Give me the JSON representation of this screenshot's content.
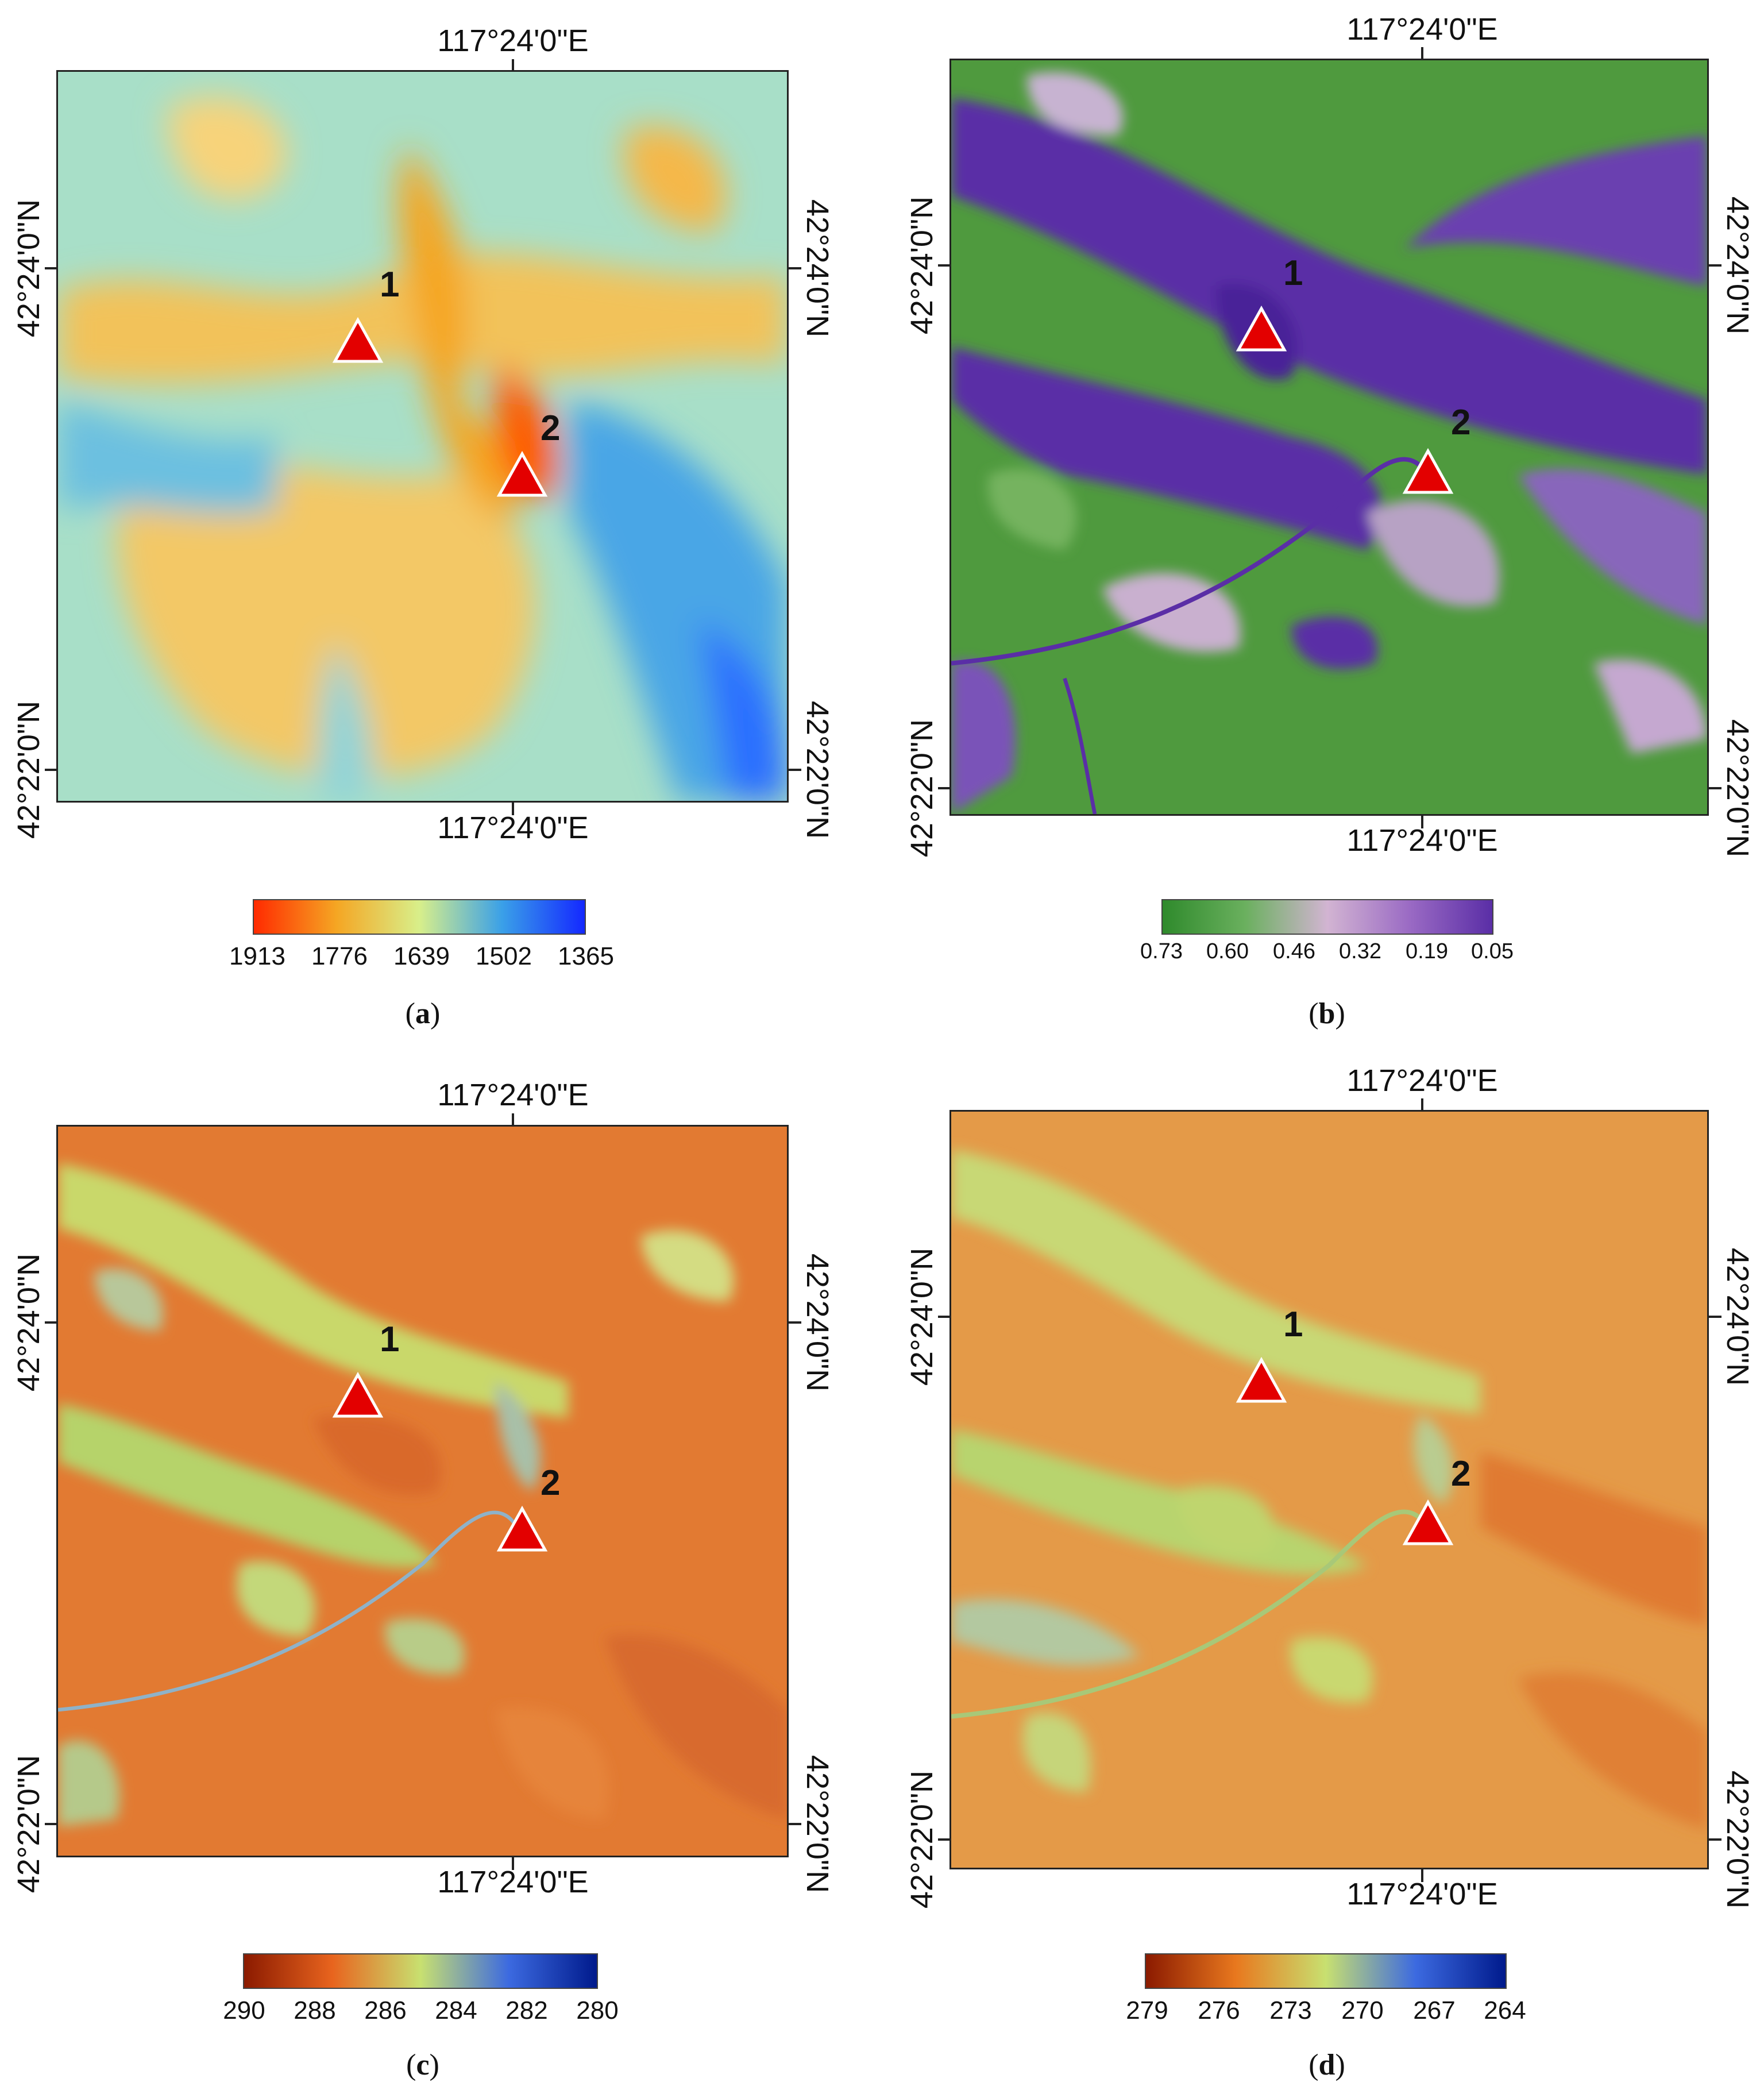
{
  "panels": {
    "a": {
      "caption_letter": "a",
      "coord_top": "117°24'0\"E",
      "coord_bottom": "117°24'0\"E",
      "coord_left_upper": "42°24'0\"N",
      "coord_left_lower": "42°22'0\"N",
      "coord_right_upper": "42°24'0\"N",
      "coord_right_lower": "42°22'0\"N",
      "site1": "1",
      "site2": "2",
      "legend": {
        "ticks": [
          "1913",
          "1776",
          "1639",
          "1502",
          "1365"
        ],
        "colors": [
          "#ff2a00",
          "#f5a623",
          "#d8ef8a",
          "#3aa0e8",
          "#1428ff"
        ]
      }
    },
    "b": {
      "caption_letter": "b",
      "coord_top": "117°24'0\"E",
      "coord_bottom": "117°24'0\"E",
      "coord_left_upper": "42°24'0\"N",
      "coord_left_lower": "42°22'0\"N",
      "coord_right_upper": "42°24'0\"N",
      "coord_right_lower": "42°22'0\"N",
      "site1": "1",
      "site2": "2",
      "legend": {
        "ticks": [
          "0.73",
          "0.60",
          "0.46",
          "0.32",
          "0.19",
          "0.05"
        ],
        "colors": [
          "#2f8a2c",
          "#6ab05e",
          "#d2b4d2",
          "#9a6ac4",
          "#5a2ea6"
        ]
      }
    },
    "c": {
      "caption_letter": "c",
      "coord_top": "117°24'0\"E",
      "coord_bottom": "117°24'0\"E",
      "coord_left_upper": "42°24'0\"N",
      "coord_left_lower": "42°22'0\"N",
      "coord_right_upper": "42°24'0\"N",
      "coord_right_lower": "42°22'0\"N",
      "site1": "1",
      "site2": "2",
      "legend": {
        "ticks": [
          "290",
          "288",
          "286",
          "284",
          "282",
          "280"
        ],
        "colors": [
          "#8b1a00",
          "#e8641e",
          "#c8e070",
          "#3c6ae0",
          "#001a8c"
        ]
      }
    },
    "d": {
      "caption_letter": "d",
      "coord_top": "117°24'0\"E",
      "coord_bottom": "117°24'0\"E",
      "coord_left_upper": "42°24'0\"N",
      "coord_left_lower": "42°22'0\"N",
      "coord_right_upper": "42°24'0\"N",
      "coord_right_lower": "42°22'0\"N",
      "site1": "1",
      "site2": "2",
      "legend": {
        "ticks": [
          "279",
          "276",
          "273",
          "270",
          "267",
          "264"
        ],
        "colors": [
          "#8b1a00",
          "#e8781e",
          "#c8e070",
          "#3c6ae0",
          "#001a8c"
        ]
      }
    }
  }
}
